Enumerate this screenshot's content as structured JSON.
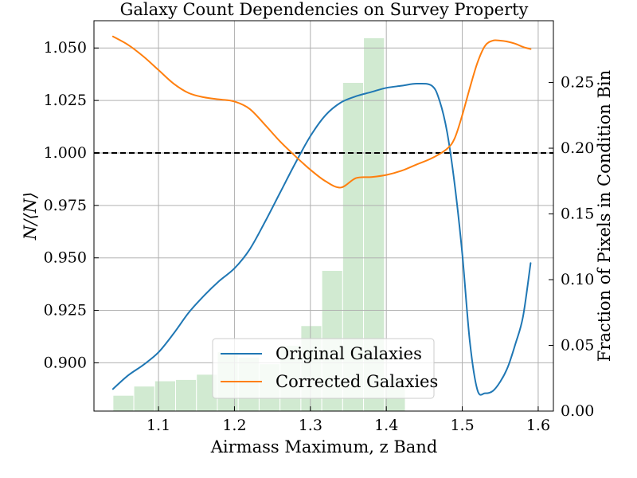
{
  "chart_data": {
    "type": "line",
    "title": "Galaxy Count Dependencies on Survey Property",
    "xlabel": "Airmass Maximum, z Band",
    "ylabel": "N/⟨N⟩",
    "y2label": "Fraction of Pixels in Condition Bin",
    "xlim": [
      1.015,
      1.62
    ],
    "ylim": [
      0.877,
      1.063
    ],
    "y2lim": [
      0.0,
      0.297
    ],
    "grid": true,
    "x_ticks": [
      1.1,
      1.2,
      1.3,
      1.4,
      1.5,
      1.6
    ],
    "x_tick_labels": [
      "1.1",
      "1.2",
      "1.3",
      "1.4",
      "1.5",
      "1.6"
    ],
    "y_ticks": [
      0.9,
      0.925,
      0.95,
      0.975,
      1.0,
      1.025,
      1.05
    ],
    "y_tick_labels": [
      "0.900",
      "0.925",
      "0.950",
      "0.975",
      "1.000",
      "1.025",
      "1.050"
    ],
    "y2_ticks": [
      0.0,
      0.05,
      0.1,
      0.15,
      0.2,
      0.25
    ],
    "y2_tick_labels": [
      "0.00",
      "0.05",
      "0.10",
      "0.15",
      "0.20",
      "0.25"
    ],
    "reference_line": 1.0,
    "legend_position": "lower-center",
    "histogram": {
      "bin_width": 0.0275,
      "bin_left_edges": [
        1.04,
        1.0675,
        1.095,
        1.1225,
        1.15,
        1.1775,
        1.205,
        1.2325,
        1.26,
        1.2875,
        1.315,
        1.3425,
        1.37,
        1.3975
      ],
      "values": [
        0.012,
        0.019,
        0.023,
        0.024,
        0.028,
        0.045,
        0.041,
        0.036,
        0.05,
        0.065,
        0.107,
        0.25,
        0.284,
        0.025
      ]
    },
    "series": [
      {
        "name": "Original Galaxies",
        "color": "#1f77b4",
        "x": [
          1.04,
          1.06,
          1.08,
          1.1,
          1.12,
          1.14,
          1.16,
          1.18,
          1.2,
          1.22,
          1.24,
          1.26,
          1.28,
          1.3,
          1.32,
          1.34,
          1.36,
          1.38,
          1.4,
          1.42,
          1.44,
          1.46,
          1.47,
          1.48,
          1.49,
          1.5,
          1.51,
          1.52,
          1.53,
          1.54,
          1.55,
          1.56,
          1.57,
          1.58,
          1.59
        ],
        "y": [
          0.8875,
          0.894,
          0.899,
          0.905,
          0.914,
          0.924,
          0.932,
          0.939,
          0.945,
          0.954,
          0.967,
          0.981,
          0.995,
          1.008,
          1.018,
          1.024,
          1.027,
          1.029,
          1.031,
          1.032,
          1.033,
          1.032,
          1.025,
          1.01,
          0.985,
          0.952,
          0.91,
          0.887,
          0.8855,
          0.8865,
          0.891,
          0.898,
          0.909,
          0.922,
          0.9475
        ]
      },
      {
        "name": "Corrected Galaxies",
        "color": "#ff7f0e",
        "x": [
          1.04,
          1.06,
          1.08,
          1.1,
          1.12,
          1.14,
          1.16,
          1.18,
          1.2,
          1.22,
          1.24,
          1.26,
          1.28,
          1.3,
          1.32,
          1.34,
          1.36,
          1.38,
          1.4,
          1.42,
          1.44,
          1.46,
          1.48,
          1.49,
          1.5,
          1.51,
          1.52,
          1.53,
          1.54,
          1.55,
          1.56,
          1.57,
          1.58,
          1.59
        ],
        "y": [
          1.0555,
          1.0515,
          1.046,
          1.0395,
          1.033,
          1.0285,
          1.0265,
          1.0255,
          1.0245,
          1.021,
          1.0135,
          1.0055,
          0.9985,
          0.992,
          0.9865,
          0.9835,
          0.988,
          0.9885,
          0.9895,
          0.9915,
          0.9945,
          0.9975,
          1.002,
          1.007,
          1.018,
          1.031,
          1.043,
          1.051,
          1.0535,
          1.0535,
          1.053,
          1.052,
          1.0505,
          1.0495
        ]
      }
    ]
  }
}
